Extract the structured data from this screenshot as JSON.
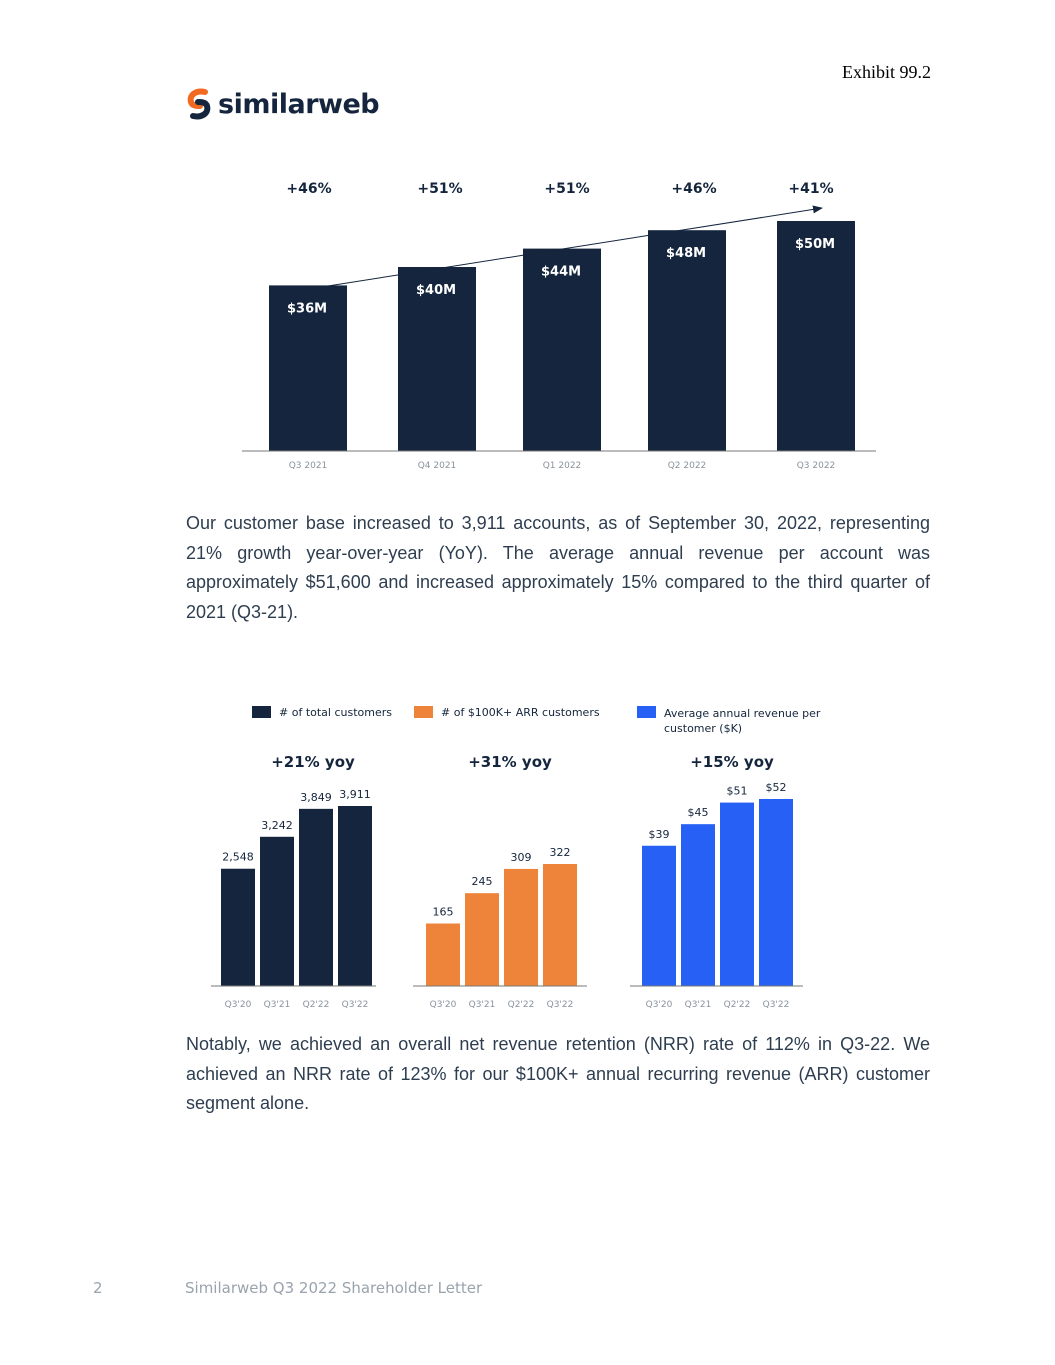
{
  "header": {
    "exhibit": "Exhibit 99.2",
    "logo_text": "similarweb"
  },
  "revenue_chart": {
    "type": "bar",
    "categories": [
      "Q3 2021",
      "Q4 2021",
      "Q1 2022",
      "Q2 2022",
      "Q3 2022"
    ],
    "values": [
      36,
      40,
      44,
      48,
      50
    ],
    "value_labels": [
      "$36M",
      "$40M",
      "$44M",
      "$48M",
      "$50M"
    ],
    "growth_labels": [
      "+46%",
      "+51%",
      "+51%",
      "+46%",
      "+41%"
    ],
    "ylim": [
      0,
      55
    ],
    "bar_color": "#14253d"
  },
  "paragraphs": {
    "p1": "Our customer base increased to 3,911 accounts, as of September 30, 2022, representing 21% growth year-over-year (YoY). The average annual revenue per account was approximately $51,600 and increased approximately 15% compared to the third quarter of 2021 (Q3-21).",
    "p2": "Notably, we achieved an overall net revenue retention (NRR) rate of 112% in Q3-22. We achieved an NRR rate of 123% for our $100K+ annual recurring revenue (ARR) customer segment alone."
  },
  "customer_charts": {
    "legend": [
      {
        "label": "# of total customers",
        "color": "#14253d"
      },
      {
        "label": "# of $100K+ ARR customers",
        "color": "#ee843a"
      },
      {
        "label": "Average annual revenue per customer ($K)",
        "color": "#2660f5"
      }
    ],
    "panels": [
      {
        "yoy": "+21% yoy",
        "color": "#14253d",
        "categories": [
          "Q3'20",
          "Q3'21",
          "Q2'22",
          "Q3'22"
        ],
        "values": [
          2548,
          3242,
          3849,
          3911
        ],
        "value_labels": [
          "2,548",
          "3,242",
          "3,849",
          "3,911"
        ],
        "ymax": 4300
      },
      {
        "yoy": "+31% yoy",
        "color": "#ee843a",
        "categories": [
          "Q3'20",
          "Q3'21",
          "Q2'22",
          "Q3'22"
        ],
        "values": [
          165,
          245,
          309,
          322
        ],
        "value_labels": [
          "165",
          "245",
          "309",
          "322"
        ],
        "ymax": 380
      },
      {
        "yoy": "+15% yoy",
        "color": "#2660f5",
        "categories": [
          "Q3'20",
          "Q3'21",
          "Q2'22",
          "Q3'22"
        ],
        "values": [
          39,
          45,
          51,
          52
        ],
        "value_labels": [
          "$39",
          "$45",
          "$51",
          "$52"
        ],
        "ymax": 56
      }
    ]
  },
  "chart_data": [
    {
      "type": "bar",
      "categories": [
        "Q3 2021",
        "Q4 2021",
        "Q1 2022",
        "Q2 2022",
        "Q3 2022"
      ],
      "values": [
        36,
        40,
        44,
        48,
        50
      ],
      "value_labels": [
        "$36M",
        "$40M",
        "$44M",
        "$48M",
        "$50M"
      ],
      "annotations": [
        "+46%",
        "+51%",
        "+51%",
        "+46%",
        "+41%"
      ]
    },
    {
      "type": "bar",
      "categories": [
        "Q3'20",
        "Q3'21",
        "Q2'22",
        "Q3'22"
      ],
      "series": [
        {
          "name": "# of total customers",
          "values": [
            2548,
            3242,
            3849,
            3911
          ]
        }
      ],
      "title": "+21% yoy"
    },
    {
      "type": "bar",
      "categories": [
        "Q3'20",
        "Q3'21",
        "Q2'22",
        "Q3'22"
      ],
      "series": [
        {
          "name": "# of $100K+ ARR customers",
          "values": [
            165,
            245,
            309,
            322
          ]
        }
      ],
      "title": "+31% yoy"
    },
    {
      "type": "bar",
      "categories": [
        "Q3'20",
        "Q3'21",
        "Q2'22",
        "Q3'22"
      ],
      "series": [
        {
          "name": "Average annual revenue per customer ($K)",
          "values": [
            39,
            45,
            51,
            52
          ]
        }
      ],
      "title": "+15% yoy"
    }
  ],
  "footer": {
    "page_number": "2",
    "title": "Similarweb Q3 2022 Shareholder Letter"
  }
}
